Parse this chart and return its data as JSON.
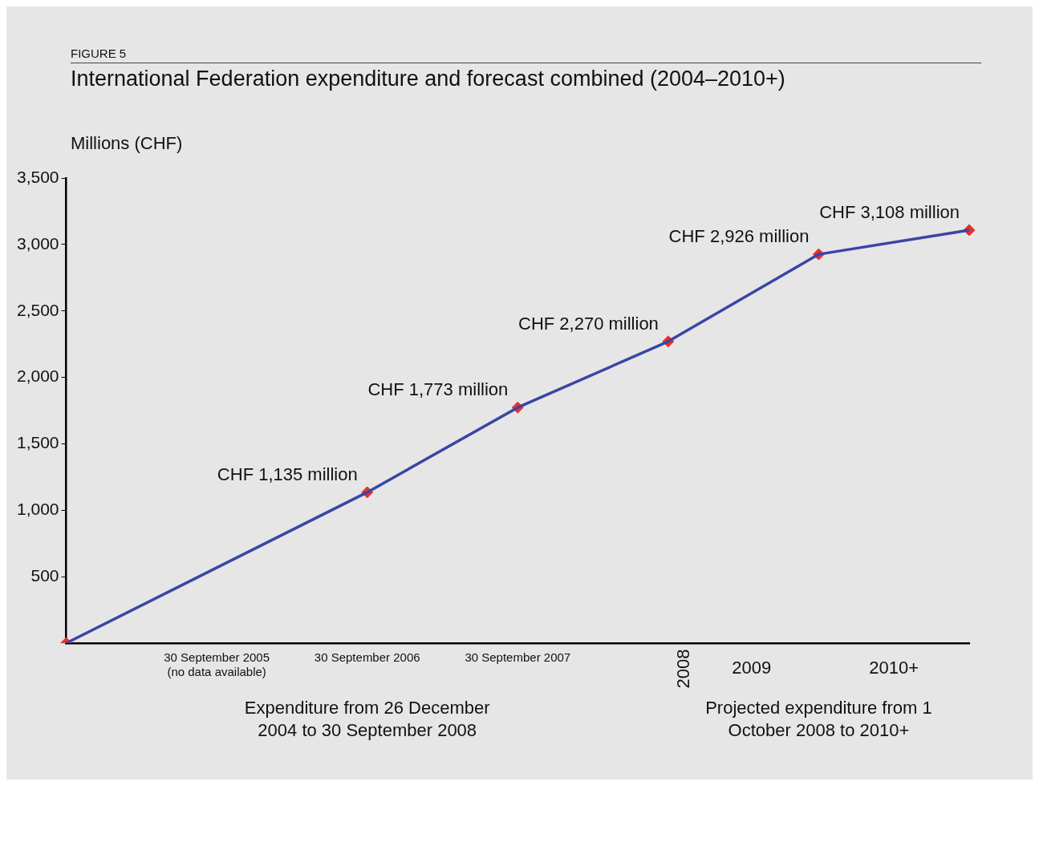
{
  "chart_data": {
    "type": "line",
    "title": "International Federation expenditure and forecast combined (2004–2010+)",
    "ylabel": "Millions (CHF)",
    "categories": [
      null,
      "30 September 2005 (no data available)",
      "30 September 2006",
      "30 September 2007",
      null,
      null,
      null
    ],
    "series": [
      {
        "color": "#3a45a6",
        "marker": "none",
        "values": [
          0,
          null,
          1135,
          1773,
          2270,
          2926,
          3108
        ]
      },
      {
        "type": "scatter",
        "color": "#e8302a",
        "marker": "diamond",
        "values": [
          0,
          null,
          1135,
          1773,
          2270,
          2926,
          3108
        ],
        "value_labels": [
          null,
          null,
          "CHF 1,135 million",
          "CHF 1,773 million",
          "CHF 2,270 million",
          "CHF 2,926 million",
          "CHF 3,108 million"
        ]
      }
    ],
    "ylim": [
      0,
      3500
    ],
    "yticks": [
      500,
      {
        "value": 1000,
        "label": "1,000"
      },
      {
        "value": 1500,
        "label": "1,500"
      },
      {
        "value": 2000,
        "label": "2,000"
      },
      {
        "value": 2500,
        "label": "2,500"
      },
      {
        "value": 3000,
        "label": "3,000"
      },
      {
        "value": 3500,
        "label": "3,500"
      }
    ],
    "grid": false,
    "legend": false,
    "annotations": [
      "FIGURE 5",
      "2008",
      "2009",
      "2010+",
      "Expenditure from 26 December 2004 to 30 September 2008",
      "Projected expenditure from 1 October 2008 to 2010+"
    ]
  }
}
